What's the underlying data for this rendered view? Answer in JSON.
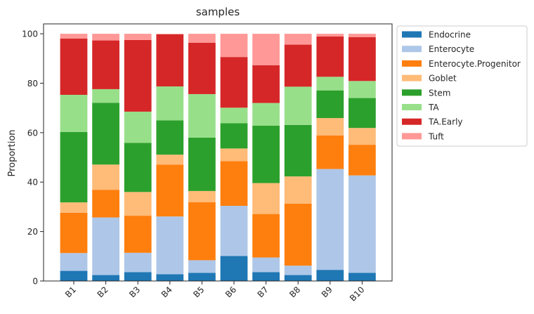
{
  "chart_data": {
    "type": "bar",
    "stacked": true,
    "title": "samples",
    "xlabel": "",
    "ylabel": "Proportion",
    "ylim": [
      0,
      104
    ],
    "yticks": [
      0,
      20,
      40,
      60,
      80,
      100
    ],
    "grid": false,
    "legend": "outside-top-right",
    "categories": [
      "B1",
      "B2",
      "B3",
      "B4",
      "B5",
      "B6",
      "B7",
      "B8",
      "B9",
      "B10"
    ],
    "series": [
      {
        "name": "Endocrine",
        "color": "#1f77b4",
        "values": [
          4.1,
          2.4,
          3.6,
          2.7,
          3.3,
          10.1,
          3.6,
          2.4,
          4.5,
          3.3
        ]
      },
      {
        "name": "Enterocyte",
        "color": "#aec7e8",
        "values": [
          7.2,
          23.3,
          7.8,
          23.4,
          5.1,
          20.3,
          5.9,
          3.8,
          40.8,
          39.4
        ]
      },
      {
        "name": "Enterocyte.Progenitor",
        "color": "#ff7f0e",
        "values": [
          16.3,
          11.2,
          15.0,
          21.0,
          23.5,
          18.1,
          17.6,
          25.1,
          13.6,
          12.4
        ]
      },
      {
        "name": "Goblet",
        "color": "#ffbb78",
        "values": [
          4.2,
          10.2,
          9.6,
          4.0,
          4.5,
          5.1,
          12.5,
          11.0,
          7.0,
          6.8
        ]
      },
      {
        "name": "Stem",
        "color": "#2ca02c",
        "values": [
          28.5,
          25.0,
          19.9,
          13.9,
          21.6,
          10.2,
          23.2,
          20.8,
          11.2,
          12.1
        ]
      },
      {
        "name": "TA",
        "color": "#98df8a",
        "values": [
          15.0,
          5.5,
          12.6,
          13.7,
          17.6,
          6.3,
          9.2,
          15.5,
          5.5,
          6.9
        ]
      },
      {
        "name": "TA.Early",
        "color": "#d62728",
        "values": [
          22.8,
          19.7,
          29.0,
          21.1,
          20.8,
          20.5,
          15.3,
          17.0,
          16.3,
          17.7
        ]
      },
      {
        "name": "Tuft",
        "color": "#ff9896",
        "values": [
          1.9,
          2.7,
          2.5,
          0.2,
          3.6,
          9.4,
          12.7,
          4.4,
          1.1,
          1.4
        ]
      }
    ]
  }
}
